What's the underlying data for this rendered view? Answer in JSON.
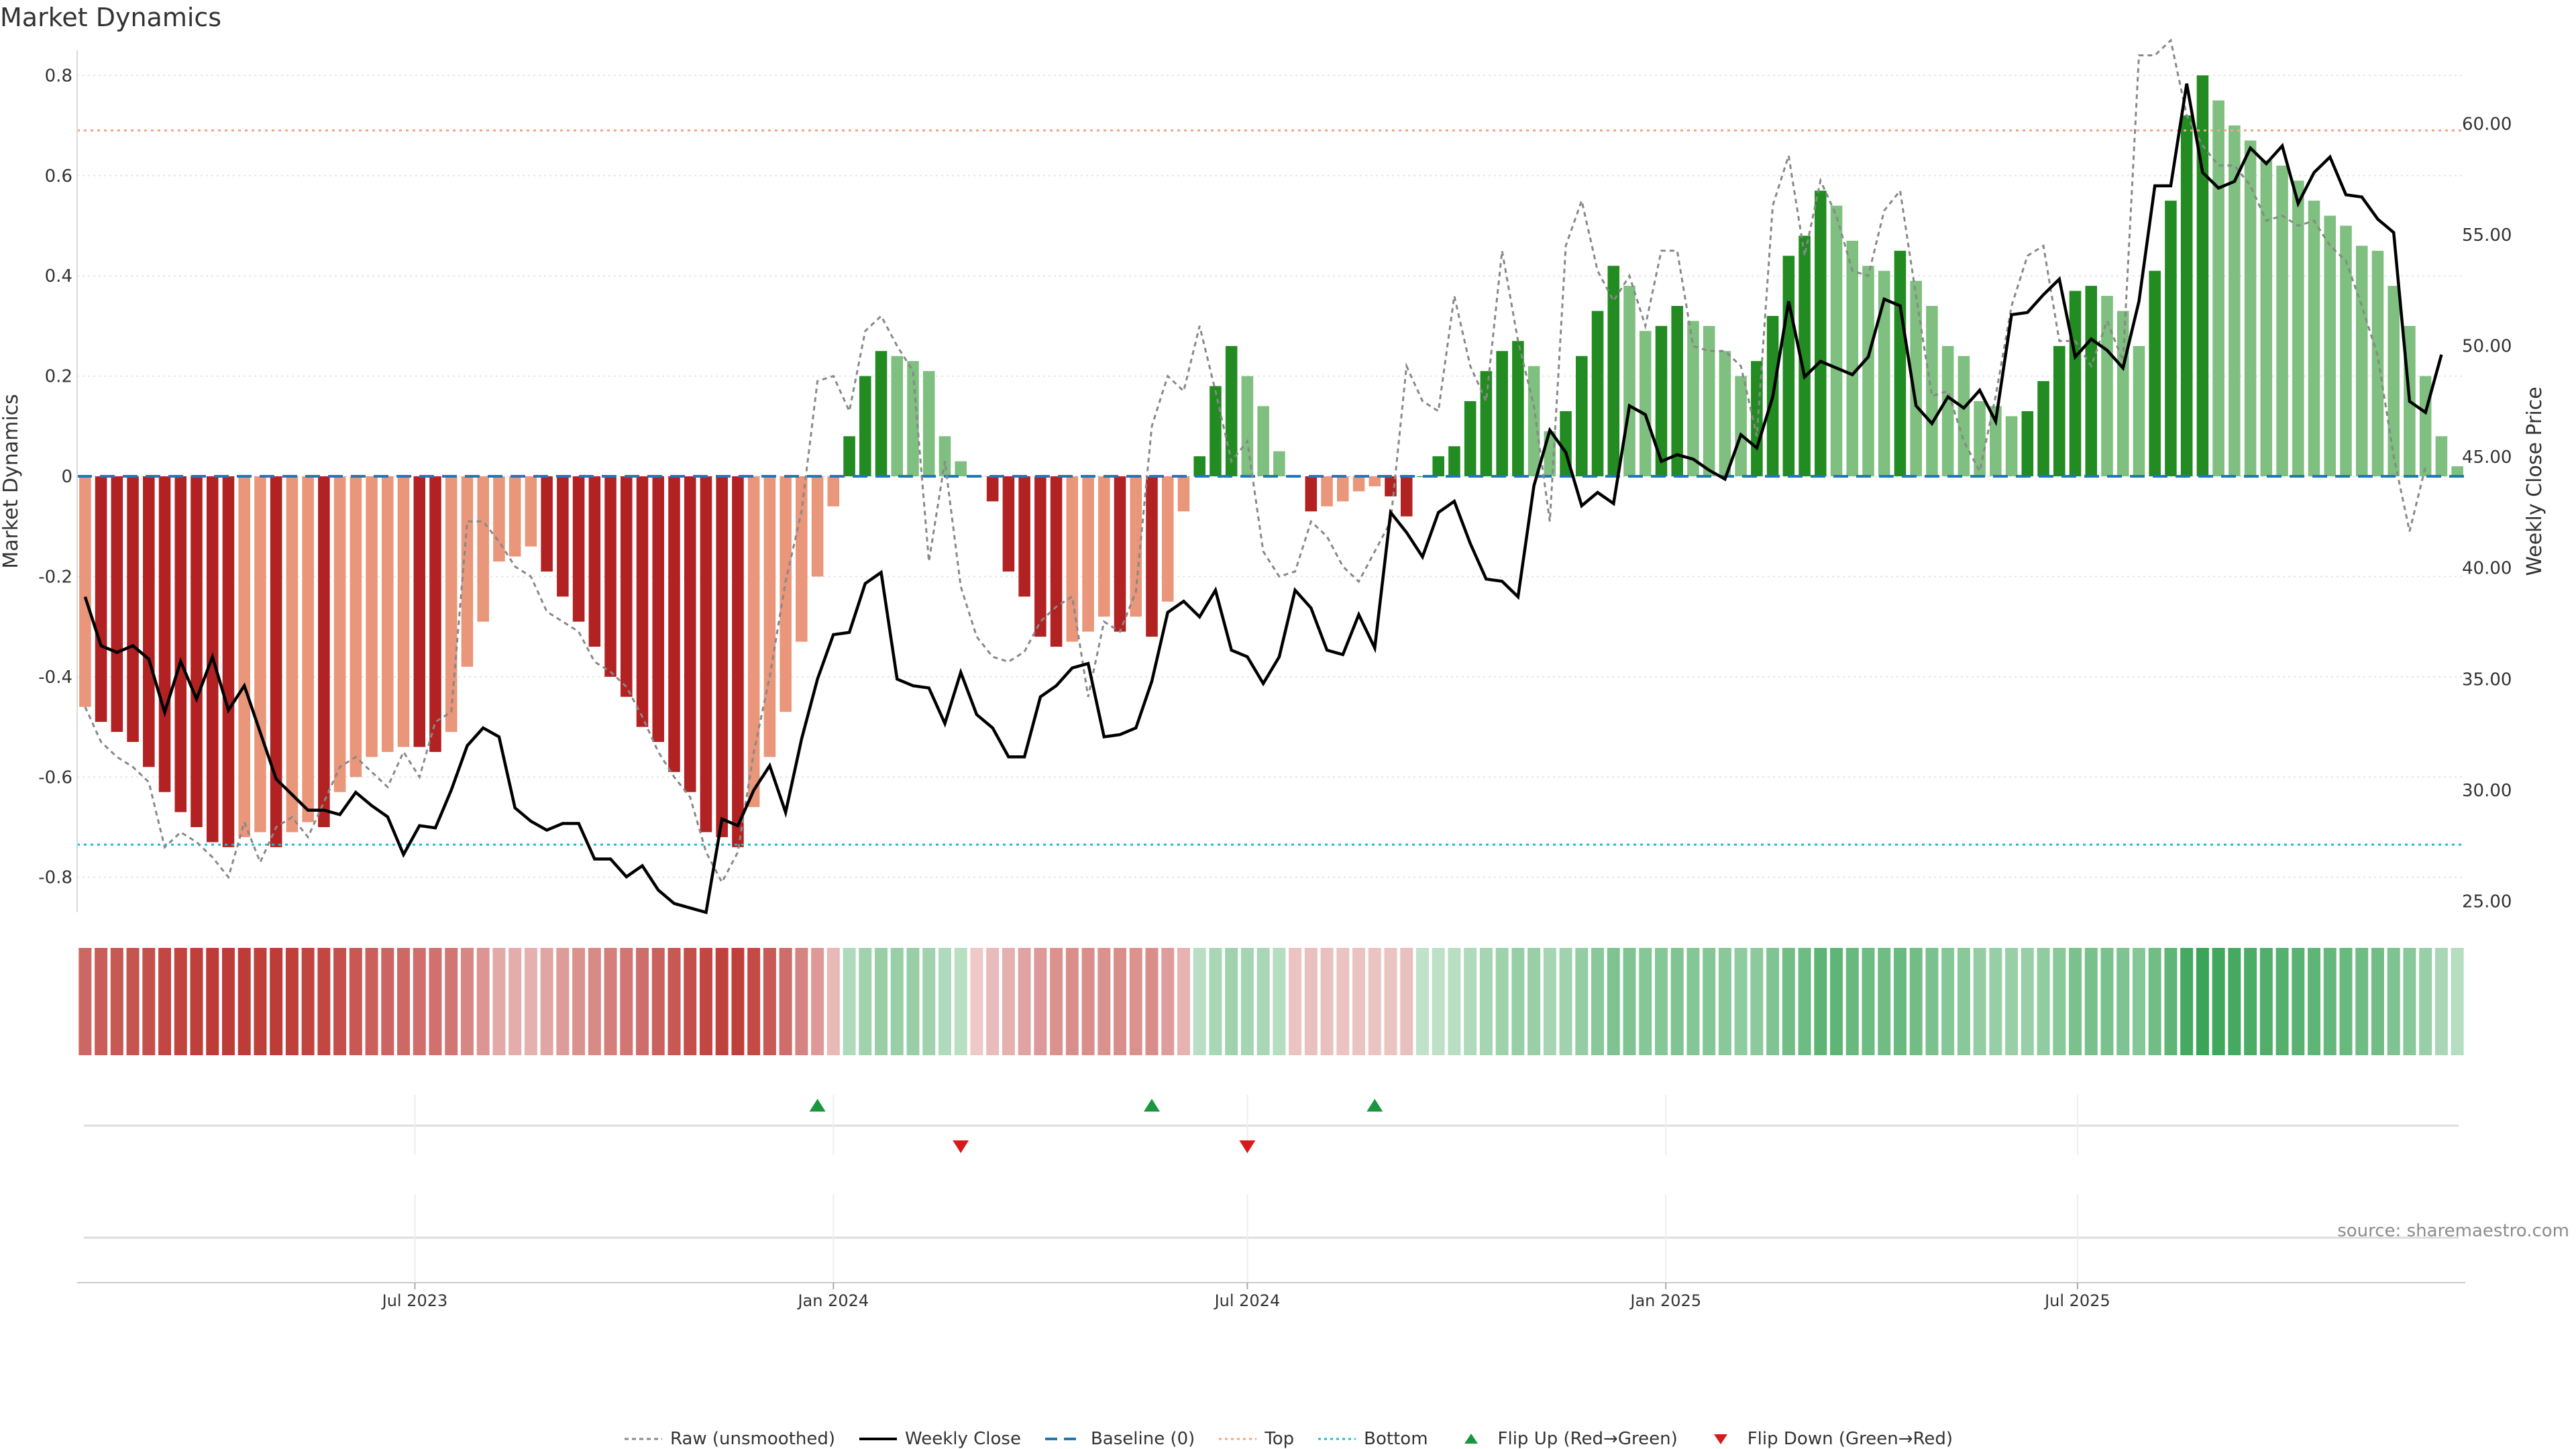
{
  "title": "Market Dynamics",
  "source": "source: sharemaestro.com",
  "legend": [
    {
      "label": "Raw (unsmoothed)",
      "symbol": "raw"
    },
    {
      "label": "Weekly Close",
      "symbol": "close"
    },
    {
      "label": "Baseline (0)",
      "symbol": "baseline"
    },
    {
      "label": "Top",
      "symbol": "top"
    },
    {
      "label": "Bottom",
      "symbol": "bottom"
    },
    {
      "label": "Flip Up (Red→Green)",
      "symbol": "flipup"
    },
    {
      "label": "Flip Down (Green→Red)",
      "symbol": "flipdown"
    }
  ],
  "colors": {
    "red_strong": "#b22222",
    "red_light": "#e9967a",
    "green_strong": "#228b22",
    "green_light": "#7fbf7f",
    "raw": "#888888",
    "close": "#000000",
    "baseline": "#1f77b4",
    "top": "#f4a582",
    "bottom": "#17becf",
    "flip_up": "#1a9641",
    "flip_down": "#d7191c"
  },
  "chart_data": {
    "type": "bar",
    "x_start": "2023-02-06",
    "x_step_days": 7,
    "ylabel": "Market Dynamics",
    "ylabel_right": "Weekly Close Price",
    "ylim": [
      -0.87,
      0.85
    ],
    "ylim_right": [
      24.5,
      63.3
    ],
    "yticks": [
      0.8,
      0.6,
      0.4,
      0.2,
      0,
      -0.2,
      -0.4,
      -0.6,
      -0.8
    ],
    "yticks_right": [
      "60.00",
      "55.00",
      "50.00",
      "45.00",
      "40.00",
      "35.00",
      "30.00",
      "25.00"
    ],
    "xticks": [
      {
        "date": "2023-07-01",
        "label": "Jul 2023"
      },
      {
        "date": "2024-01-01",
        "label": "Jan 2024"
      },
      {
        "date": "2024-07-01",
        "label": "Jul 2024"
      },
      {
        "date": "2025-01-01",
        "label": "Jan 2025"
      },
      {
        "date": "2025-07-01",
        "label": "Jul 2025"
      }
    ],
    "top_line": 0.69,
    "bottom_line": -0.735,
    "baseline": 0,
    "bars": [
      -0.46,
      -0.49,
      -0.51,
      -0.53,
      -0.58,
      -0.63,
      -0.67,
      -0.7,
      -0.73,
      -0.74,
      -0.72,
      -0.71,
      -0.74,
      -0.71,
      -0.69,
      -0.7,
      -0.63,
      -0.6,
      -0.56,
      -0.55,
      -0.54,
      -0.54,
      -0.55,
      -0.51,
      -0.38,
      -0.29,
      -0.17,
      -0.16,
      -0.14,
      -0.19,
      -0.24,
      -0.29,
      -0.34,
      -0.4,
      -0.44,
      -0.5,
      -0.53,
      -0.59,
      -0.63,
      -0.71,
      -0.72,
      -0.74,
      -0.66,
      -0.56,
      -0.47,
      -0.33,
      -0.2,
      -0.06,
      0.08,
      0.2,
      0.25,
      0.24,
      0.23,
      0.21,
      0.08,
      0.03,
      0.0,
      -0.05,
      -0.19,
      -0.24,
      -0.32,
      -0.34,
      -0.33,
      -0.31,
      -0.28,
      -0.31,
      -0.28,
      -0.32,
      -0.25,
      -0.07,
      0.04,
      0.18,
      0.26,
      0.2,
      0.14,
      0.05,
      0.0,
      -0.07,
      -0.06,
      -0.05,
      -0.03,
      -0.02,
      -0.04,
      -0.08,
      0.0,
      0.04,
      0.06,
      0.15,
      0.21,
      0.25,
      0.27,
      0.22,
      0.09,
      0.13,
      0.24,
      0.33,
      0.42,
      0.38,
      0.29,
      0.3,
      0.34,
      0.31,
      0.3,
      0.25,
      0.2,
      0.23,
      0.32,
      0.44,
      0.48,
      0.57,
      0.54,
      0.47,
      0.42,
      0.41,
      0.45,
      0.39,
      0.34,
      0.26,
      0.24,
      0.15,
      0.14,
      0.12,
      0.13,
      0.19,
      0.26,
      0.37,
      0.38,
      0.36,
      0.33,
      0.26,
      0.41,
      0.55,
      0.72,
      0.8,
      0.75,
      0.7,
      0.67,
      0.63,
      0.62,
      0.59,
      0.55,
      0.52,
      0.5,
      0.46,
      0.45,
      0.38,
      0.3,
      0.2,
      0.08,
      0.02
    ],
    "raw": [
      -0.46,
      -0.53,
      -0.56,
      -0.58,
      -0.61,
      -0.74,
      -0.71,
      -0.73,
      -0.76,
      -0.8,
      -0.69,
      -0.77,
      -0.7,
      -0.68,
      -0.72,
      -0.65,
      -0.58,
      -0.56,
      -0.59,
      -0.62,
      -0.55,
      -0.6,
      -0.49,
      -0.47,
      -0.09,
      -0.09,
      -0.13,
      -0.18,
      -0.2,
      -0.27,
      -0.29,
      -0.31,
      -0.37,
      -0.39,
      -0.42,
      -0.48,
      -0.55,
      -0.6,
      -0.64,
      -0.75,
      -0.81,
      -0.75,
      -0.55,
      -0.4,
      -0.21,
      -0.07,
      0.19,
      0.2,
      0.13,
      0.29,
      0.32,
      0.26,
      0.21,
      -0.17,
      0.03,
      -0.22,
      -0.32,
      -0.36,
      -0.37,
      -0.35,
      -0.29,
      -0.26,
      -0.24,
      -0.44,
      -0.29,
      -0.31,
      -0.23,
      0.1,
      0.2,
      0.17,
      0.3,
      0.17,
      0.03,
      0.07,
      -0.15,
      -0.2,
      -0.19,
      -0.09,
      -0.12,
      -0.18,
      -0.21,
      -0.15,
      -0.09,
      0.22,
      0.15,
      0.13,
      0.36,
      0.22,
      0.15,
      0.45,
      0.27,
      0.14,
      -0.09,
      0.46,
      0.55,
      0.41,
      0.35,
      0.4,
      0.3,
      0.45,
      0.45,
      0.26,
      0.25,
      0.25,
      0.22,
      0.08,
      0.54,
      0.64,
      0.44,
      0.59,
      0.52,
      0.41,
      0.4,
      0.53,
      0.57,
      0.36,
      0.16,
      0.17,
      0.07,
      0.01,
      0.16,
      0.34,
      0.44,
      0.46,
      0.27,
      0.27,
      0.22,
      0.31,
      0.23,
      0.84,
      0.84,
      0.87,
      0.72,
      0.66,
      0.62,
      0.62,
      0.58,
      0.51,
      0.52,
      0.5,
      0.51,
      0.46,
      0.43,
      0.34,
      0.24,
      0.04,
      -0.11,
      0.02
    ],
    "close": [
      38.7,
      36.5,
      36.2,
      36.5,
      35.9,
      33.5,
      35.8,
      34.1,
      36.0,
      33.6,
      34.7,
      32.6,
      30.5,
      29.8,
      29.1,
      29.1,
      28.9,
      29.9,
      29.3,
      28.8,
      27.1,
      28.4,
      28.3,
      30.0,
      32.0,
      32.8,
      32.4,
      29.2,
      28.6,
      28.2,
      28.5,
      28.5,
      26.9,
      26.9,
      26.1,
      26.6,
      25.5,
      24.9,
      24.7,
      24.5,
      28.7,
      28.4,
      30.0,
      31.1,
      29.0,
      32.3,
      35.0,
      37.0,
      37.1,
      39.3,
      39.8,
      35.0,
      34.7,
      34.6,
      33.0,
      35.3,
      33.4,
      32.8,
      31.5,
      31.5,
      34.2,
      34.7,
      35.5,
      35.7,
      32.4,
      32.5,
      32.8,
      34.9,
      38.0,
      38.5,
      37.8,
      39.0,
      36.3,
      36.0,
      34.8,
      36.0,
      39.0,
      38.2,
      36.3,
      36.1,
      37.9,
      36.4,
      42.5,
      41.6,
      40.5,
      42.5,
      43.0,
      41.1,
      39.5,
      39.4,
      38.7,
      43.7,
      46.2,
      45.2,
      42.8,
      43.4,
      42.9,
      47.3,
      46.9,
      44.8,
      45.1,
      44.9,
      44.4,
      44.0,
      46.0,
      45.4,
      47.7,
      52.0,
      48.6,
      49.3,
      49.0,
      48.7,
      49.5,
      52.1,
      51.8,
      47.3,
      46.5,
      47.7,
      47.2,
      48.0,
      46.6,
      51.4,
      51.5,
      52.3,
      53.0,
      49.5,
      50.3,
      49.8,
      49.0,
      52.0,
      57.2,
      57.2,
      61.8,
      57.8,
      57.1,
      57.4,
      58.9,
      58.2,
      59.0,
      56.4,
      57.8,
      58.5,
      56.8,
      56.7,
      55.7,
      55.1,
      47.5,
      47.0,
      49.6
    ]
  },
  "strip": [
    -0.43,
    -0.47,
    -0.49,
    -0.5,
    -0.52,
    -0.55,
    -0.56,
    -0.58,
    -0.59,
    -0.6,
    -0.59,
    -0.58,
    -0.59,
    -0.58,
    -0.56,
    -0.55,
    -0.52,
    -0.49,
    -0.46,
    -0.44,
    -0.42,
    -0.4,
    -0.39,
    -0.37,
    -0.31,
    -0.25,
    -0.18,
    -0.16,
    -0.15,
    -0.19,
    -0.23,
    -0.27,
    -0.3,
    -0.34,
    -0.37,
    -0.41,
    -0.45,
    -0.49,
    -0.52,
    -0.55,
    -0.57,
    -0.58,
    -0.54,
    -0.48,
    -0.41,
    -0.32,
    -0.24,
    -0.12,
    0.14,
    0.2,
    0.22,
    0.22,
    0.22,
    0.2,
    0.14,
    0.1,
    -0.06,
    -0.1,
    -0.15,
    -0.2,
    -0.24,
    -0.27,
    -0.28,
    -0.28,
    -0.27,
    -0.28,
    -0.27,
    -0.28,
    -0.22,
    -0.14,
    0.1,
    0.16,
    0.2,
    0.18,
    0.16,
    0.12,
    -0.08,
    -0.09,
    -0.09,
    -0.08,
    -0.08,
    -0.08,
    -0.08,
    -0.09,
    0.08,
    0.09,
    0.1,
    0.14,
    0.18,
    0.21,
    0.23,
    0.22,
    0.18,
    0.2,
    0.24,
    0.28,
    0.32,
    0.31,
    0.29,
    0.29,
    0.31,
    0.3,
    0.3,
    0.28,
    0.26,
    0.27,
    0.31,
    0.36,
    0.38,
    0.44,
    0.43,
    0.4,
    0.38,
    0.37,
    0.39,
    0.36,
    0.33,
    0.29,
    0.28,
    0.24,
    0.23,
    0.22,
    0.22,
    0.25,
    0.28,
    0.33,
    0.34,
    0.33,
    0.32,
    0.29,
    0.36,
    0.43,
    0.52,
    0.56,
    0.54,
    0.52,
    0.5,
    0.48,
    0.47,
    0.45,
    0.43,
    0.41,
    0.4,
    0.37,
    0.36,
    0.32,
    0.28,
    0.22,
    0.16,
    0.12
  ],
  "flips_up": [
    "2023-12-25",
    "2024-05-20",
    "2024-08-26"
  ],
  "flips_down": [
    "2024-02-26",
    "2024-07-01"
  ]
}
